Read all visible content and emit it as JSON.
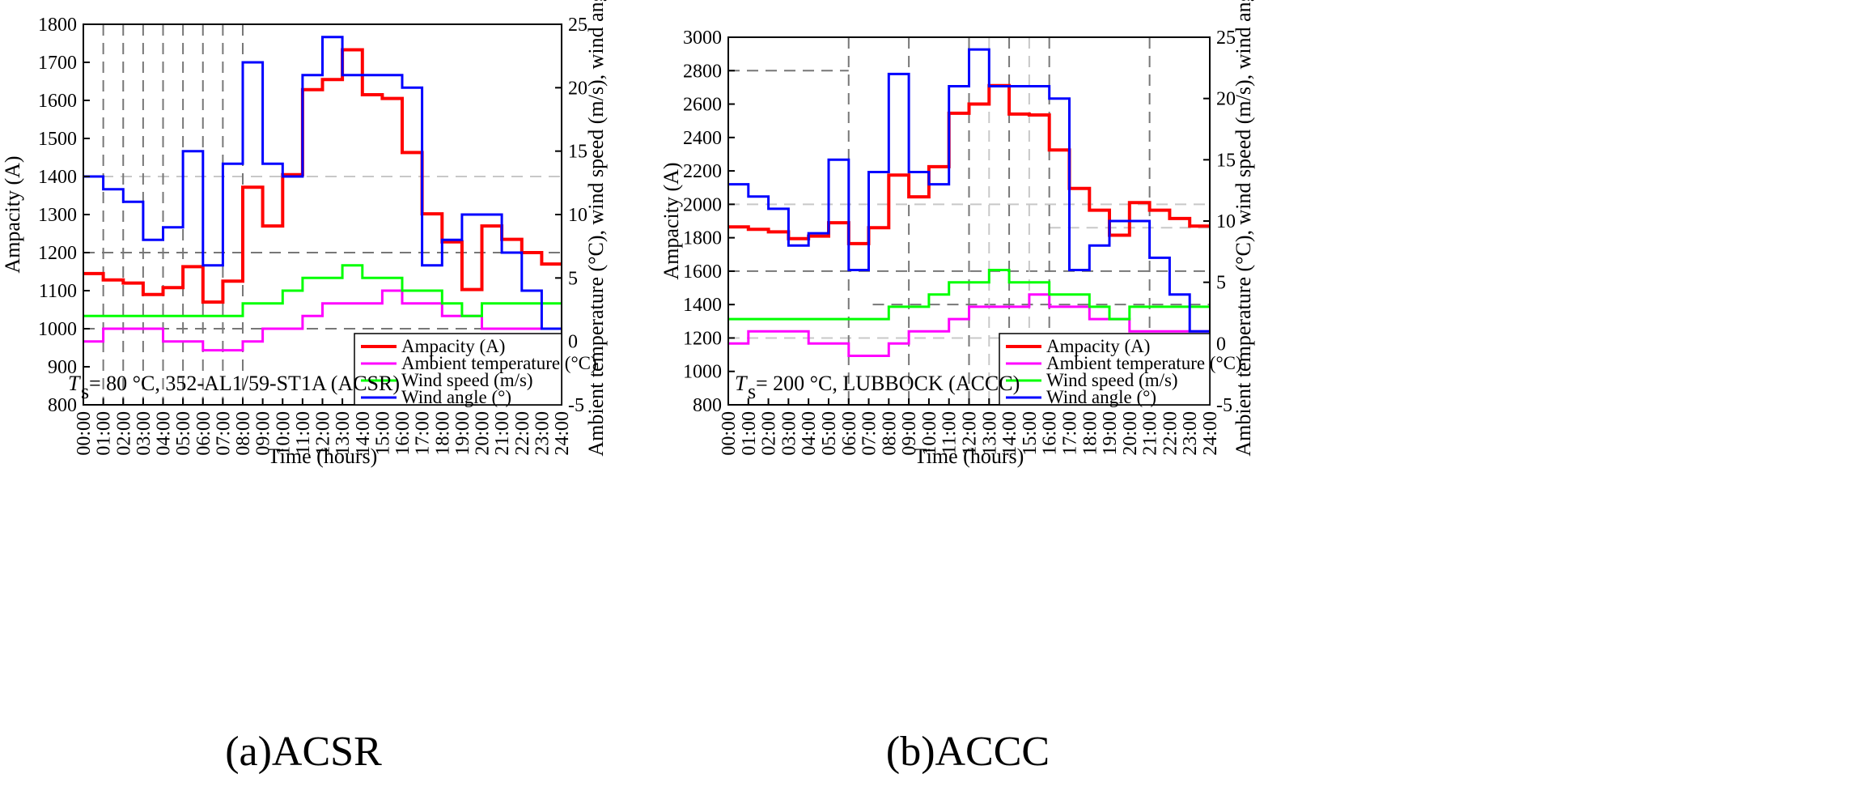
{
  "chart_data": [
    {
      "type": "line",
      "step": true,
      "title": "",
      "caption": "(a)ACSR",
      "annotation": {
        "symbol": "T",
        "subscript": "s",
        "text": " = 80 °C, 352-AL1/59-ST1A (ACSR)"
      },
      "xlabel": "Time (hours)",
      "ylabel": "Ampacity (A)",
      "y2label": "Ambient temperature (°C), wind speed (m/s), wind angle (°)",
      "x_ticks": [
        "00:00",
        "01:00",
        "02:00",
        "03:00",
        "04:00",
        "05:00",
        "06:00",
        "07:00",
        "08:00",
        "09:00",
        "10:00",
        "11:00",
        "12:00",
        "13:00",
        "14:00",
        "15:00",
        "16:00",
        "17:00",
        "18:00",
        "19:00",
        "20:00",
        "21:00",
        "22:00",
        "23:00",
        "24:00"
      ],
      "xlim": [
        0,
        24
      ],
      "ylim": [
        800,
        1800
      ],
      "y_ticks": [
        800,
        900,
        1000,
        1100,
        1200,
        1300,
        1400,
        1500,
        1600,
        1700,
        1800
      ],
      "y2lim": [
        -5,
        25
      ],
      "y2_ticks": [
        -5,
        0,
        5,
        10,
        15,
        20,
        25
      ],
      "vlines_dark": [
        1,
        2,
        3,
        4,
        5,
        6,
        7,
        8
      ],
      "hlines_dark": [
        1000,
        1200
      ],
      "hlines_light": [
        1400
      ],
      "legend": [
        "Ampacity (A)",
        "Ambient temperature (°C)",
        "Wind speed (m/s)",
        "Wind angle (°)"
      ],
      "legend_position": "bottom-right",
      "series": [
        {
          "name": "Ampacity (A)",
          "color": "#ff0000",
          "axis": "left",
          "values": [
            1145,
            1128,
            1120,
            1090,
            1108,
            1163,
            1070,
            1125,
            1372,
            1270,
            1405,
            1628,
            1655,
            1733,
            1615,
            1605,
            1463,
            1302,
            1228,
            1103,
            1270,
            1235,
            1200,
            1170
          ]
        },
        {
          "name": "Ambient temperature (°C)",
          "color": "#ff00ff",
          "axis": "right",
          "values": [
            0,
            1,
            1,
            1,
            0,
            0,
            -0.7,
            -0.7,
            0,
            1,
            1,
            2,
            3,
            3,
            3,
            4,
            3,
            3,
            2,
            2,
            1,
            1,
            1,
            1
          ]
        },
        {
          "name": "Wind speed (m/s)",
          "color": "#00ff00",
          "axis": "right",
          "values": [
            2,
            2,
            2,
            2,
            2,
            2,
            2,
            2,
            3,
            3,
            4,
            5,
            5,
            6,
            5,
            5,
            4,
            4,
            3,
            2,
            3,
            3,
            3,
            3
          ]
        },
        {
          "name": "Wind angle (°)",
          "color": "#0000ff",
          "axis": "right",
          "values": [
            13,
            12,
            11,
            8,
            9,
            15,
            6,
            14,
            22,
            14,
            13,
            21,
            24,
            21,
            21,
            21,
            20,
            6,
            8,
            10,
            10,
            7,
            4,
            1
          ]
        }
      ]
    },
    {
      "type": "line",
      "step": true,
      "title": "",
      "caption": "(b)ACCC",
      "annotation": {
        "symbol": "T",
        "subscript": "s",
        "text": " = 200 °C, LUBBOCK (ACCC)"
      },
      "xlabel": "Time (hours)",
      "ylabel": "Ampacity (A)",
      "y2label": "Ambient temperature (°C), wind speed (m/s), wind angle (°)",
      "x_ticks": [
        "00:00",
        "01:00",
        "02:00",
        "03:00",
        "04:00",
        "05:00",
        "06:00",
        "07:00",
        "08:00",
        "09:00",
        "10:00",
        "11:00",
        "12:00",
        "13:00",
        "14:00",
        "15:00",
        "16:00",
        "17:00",
        "18:00",
        "19:00",
        "20:00",
        "21:00",
        "22:00",
        "23:00",
        "24:00"
      ],
      "xlim": [
        0,
        24
      ],
      "ylim": [
        800,
        3000
      ],
      "y_ticks": [
        800,
        1000,
        1200,
        1400,
        1600,
        1800,
        2000,
        2200,
        2400,
        2600,
        2800,
        3000
      ],
      "y2lim": [
        -5,
        25
      ],
      "y2_ticks": [
        -5,
        0,
        5,
        10,
        15,
        20,
        25
      ],
      "vlines_dark": [
        6,
        9,
        12,
        14,
        16,
        21
      ],
      "vlines_light": [
        13,
        15
      ],
      "hlines_dark": [
        1600,
        2800
      ],
      "hlines_light": [
        2000,
        1200
      ],
      "hline_partial_dark": [
        {
          "y": 1400,
          "from": 7.2,
          "to": 24
        }
      ],
      "hline_partial_light": [
        {
          "y": 1860,
          "from": 16,
          "to": 24
        }
      ],
      "legend": [
        "Ampacity (A)",
        "Ambient temperature (°C)",
        "Wind speed (m/s)",
        "Wind angle (°)"
      ],
      "legend_position": "bottom-right",
      "series": [
        {
          "name": "Ampacity (A)",
          "color": "#ff0000",
          "axis": "left",
          "values": [
            1865,
            1850,
            1835,
            1795,
            1810,
            1890,
            1765,
            1860,
            2175,
            2045,
            2225,
            2545,
            2600,
            2710,
            2540,
            2535,
            2325,
            2095,
            1965,
            1815,
            2010,
            1965,
            1915,
            1870
          ]
        },
        {
          "name": "Ambient temperature (°C)",
          "color": "#ff00ff",
          "axis": "right",
          "values": [
            0,
            1,
            1,
            1,
            0,
            0,
            -1,
            -1,
            0,
            1,
            1,
            2,
            3,
            3,
            3,
            4,
            3,
            3,
            2,
            2,
            1,
            1,
            1,
            1
          ]
        },
        {
          "name": "Wind speed (m/s)",
          "color": "#00ff00",
          "axis": "right",
          "values": [
            2,
            2,
            2,
            2,
            2,
            2,
            2,
            2,
            3,
            3,
            4,
            5,
            5,
            6,
            5,
            5,
            4,
            4,
            3,
            2,
            3,
            3,
            3,
            3
          ]
        },
        {
          "name": "Wind angle (°)",
          "color": "#0000ff",
          "axis": "right",
          "values": [
            13,
            12,
            11,
            8,
            9,
            15,
            6,
            14,
            22,
            14,
            13,
            21,
            24,
            21,
            21,
            21,
            20,
            6,
            8,
            10,
            10,
            7,
            4,
            1
          ]
        }
      ]
    }
  ]
}
